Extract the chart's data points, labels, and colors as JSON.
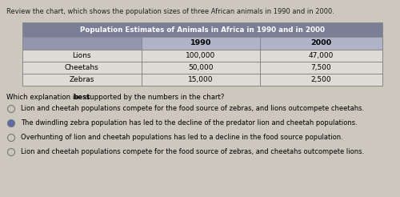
{
  "intro_text": "Review the chart, which shows the population sizes of three African animals in 1990 and in 2000.",
  "table_title": "Population Estimates of Animals in Africa in 1990 and in 2000",
  "col_headers": [
    "",
    "1990",
    "2000"
  ],
  "rows": [
    [
      "Lions",
      "100,000",
      "47,000"
    ],
    [
      "Cheetahs",
      "50,000",
      "7,500"
    ],
    [
      "Zebras",
      "15,000",
      "2,500"
    ]
  ],
  "question_plain1": "Which explanation is ",
  "question_bold": "best",
  "question_plain2": " supported by the numbers in the chart?",
  "options": [
    {
      "selected": false,
      "text": "Lion and cheetah populations compete for the food source of zebras, and lions outcompete cheetahs."
    },
    {
      "selected": true,
      "text": "The dwindling zebra population has led to the decline of the predator lion and cheetah populations."
    },
    {
      "selected": false,
      "text": "Overhunting of lion and cheetah populations has led to a decline in the food source population."
    },
    {
      "selected": false,
      "text": "Lion and cheetah populations compete for the food source of zebras, and cheetahs outcompete lions."
    }
  ],
  "bg_color": "#ccc8be",
  "table_title_bg": "#7b7e97",
  "table_header_left_bg": "#9396ae",
  "table_header_col_bg": "#b0b3c8",
  "table_row_bg": "#dedad4",
  "table_border_color": "#888888",
  "text_color": "#222222",
  "radio_selected_color": "#5a6aaa",
  "radio_border_color": "#777777"
}
